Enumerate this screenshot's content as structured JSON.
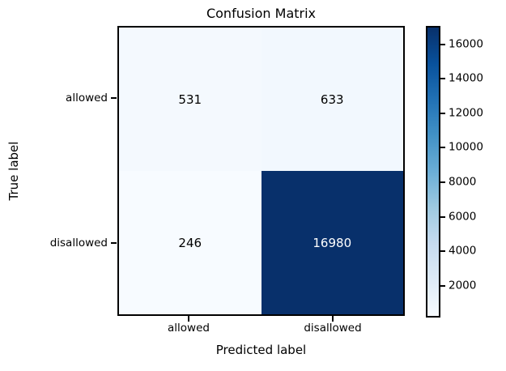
{
  "chart_data": {
    "type": "heatmap",
    "title": "Confusion Matrix",
    "xlabel": "Predicted label",
    "ylabel": "True label",
    "x_categories": [
      "allowed",
      "disallowed"
    ],
    "y_categories": [
      "allowed",
      "disallowed"
    ],
    "matrix": [
      [
        531,
        633
      ],
      [
        246,
        16980
      ]
    ],
    "vmin": 246,
    "vmax": 16980,
    "colorbar_ticks": [
      2000,
      4000,
      6000,
      8000,
      10000,
      12000,
      14000,
      16000
    ],
    "colorbar_position": "right",
    "colormap_name": "Blues",
    "colormap_stops": [
      "#f7fbff",
      "#deebf7",
      "#c6dbef",
      "#9ecae1",
      "#6baed6",
      "#4292c6",
      "#2171b5",
      "#08519c",
      "#08306b"
    ],
    "cell_text_color_dark": "#000000",
    "cell_text_color_light": "#ffffff",
    "spine_color": "#000000",
    "grid": false
  }
}
